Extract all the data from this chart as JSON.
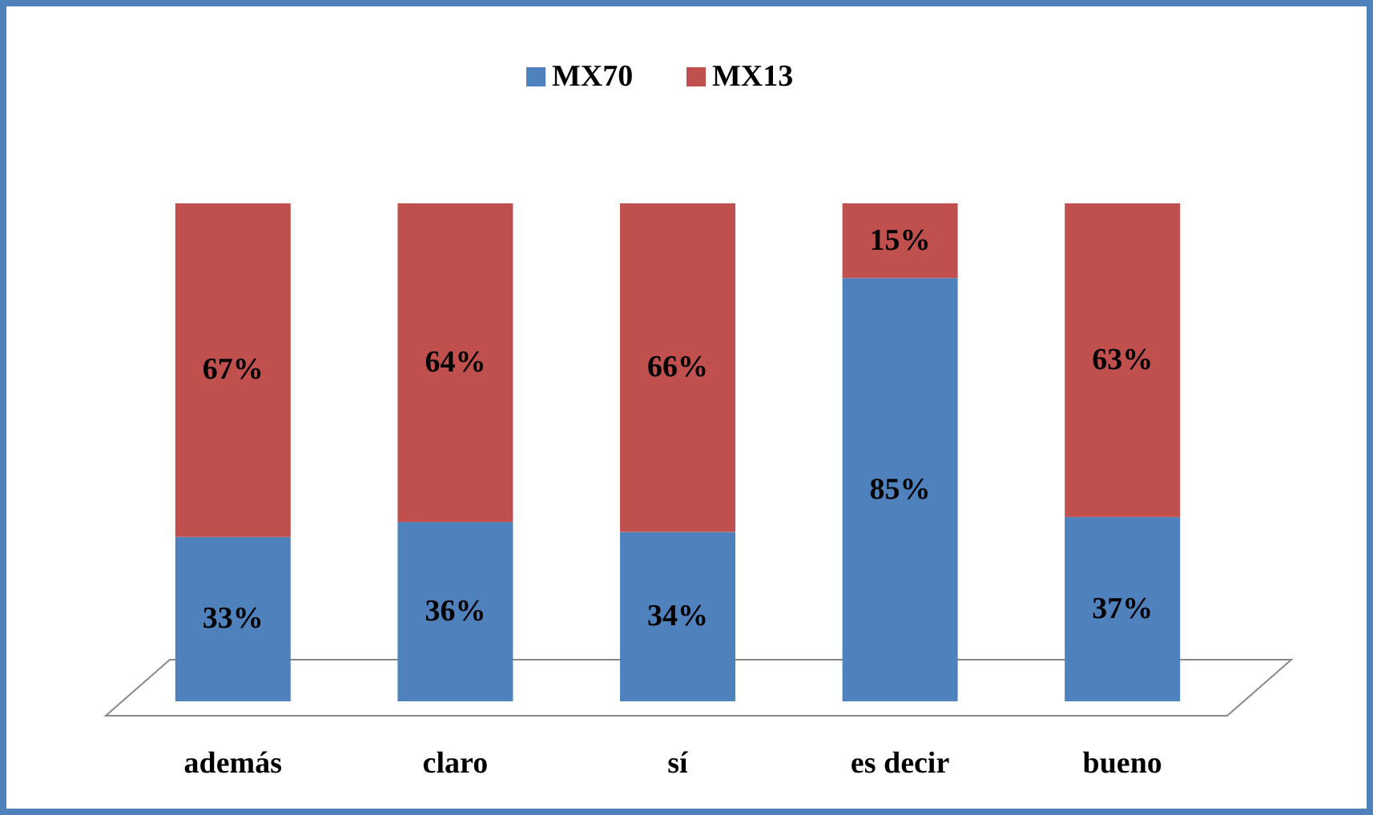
{
  "chart_data": {
    "type": "bar",
    "stacked": true,
    "legend": "top",
    "categories": [
      "además",
      "claro",
      "sí",
      "es decir",
      "bueno"
    ],
    "series": [
      {
        "name": "MX70",
        "color": "#4f81bd",
        "values": [
          33,
          36,
          34,
          85,
          37
        ],
        "value_labels": [
          "33%",
          "36%",
          "34%",
          "85%",
          "37%"
        ]
      },
      {
        "name": "MX13",
        "color": "#c0504d",
        "values": [
          67,
          64,
          66,
          15,
          63
        ],
        "value_labels": [
          "67%",
          "64%",
          "66%",
          "15%",
          "63%"
        ]
      }
    ]
  }
}
